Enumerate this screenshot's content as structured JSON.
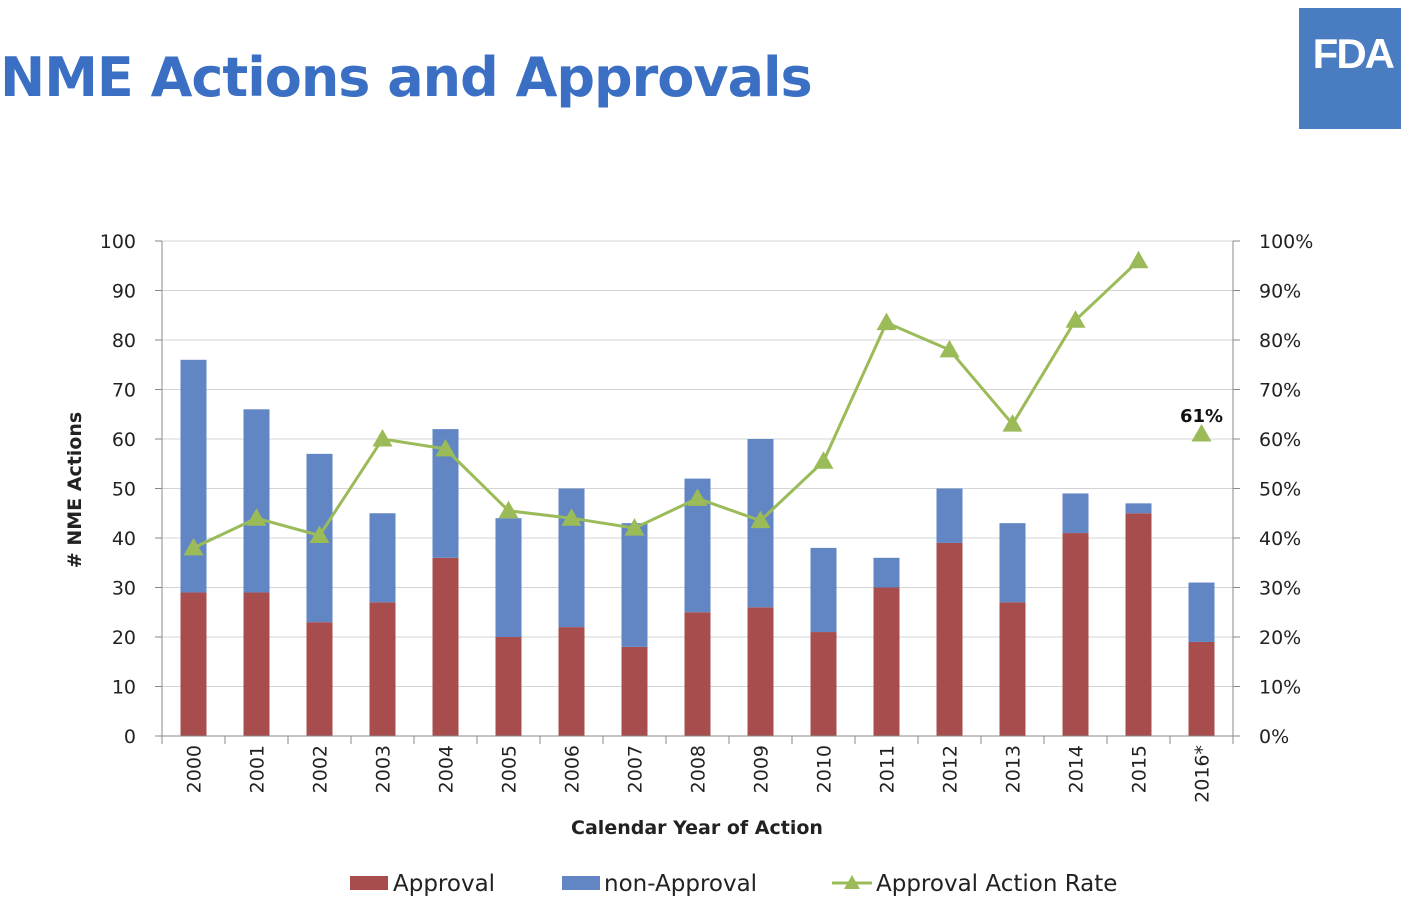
{
  "header": {
    "title": "NME Actions and Approvals",
    "logo_text": "FDA"
  },
  "colors": {
    "title": "#3a6fc4",
    "logo_bg": "#4a7cc2",
    "approval": "#a84d4d",
    "non_approval": "#6286c4",
    "rate_line": "#9bbb59",
    "grid": "#d4d4d4"
  },
  "chart_data": {
    "type": "bar",
    "stacked": true,
    "categories": [
      "2000",
      "2001",
      "2002",
      "2003",
      "2004",
      "2005",
      "2006",
      "2007",
      "2008",
      "2009",
      "2010",
      "2011",
      "2012",
      "2013",
      "2014",
      "2015",
      "2016*"
    ],
    "series": [
      {
        "name": "Approval",
        "type": "bar",
        "axis": "left",
        "values": [
          29,
          29,
          23,
          27,
          36,
          20,
          22,
          18,
          25,
          26,
          21,
          30,
          39,
          27,
          41,
          45,
          19
        ]
      },
      {
        "name": "non-Approval",
        "type": "bar",
        "axis": "left",
        "values": [
          47,
          37,
          34,
          18,
          26,
          24,
          28,
          25,
          27,
          34,
          17,
          6,
          11,
          16,
          8,
          2,
          12
        ]
      },
      {
        "name": "Approval Action Rate",
        "type": "line",
        "axis": "right",
        "marker": "triangle",
        "values": [
          38,
          44,
          40.5,
          60,
          58,
          45.5,
          44,
          42,
          48,
          43.5,
          55.5,
          83.5,
          78,
          63,
          84,
          96,
          61
        ]
      }
    ],
    "xlabel": "Calendar Year of Action",
    "ylabel": "# NME Actions",
    "ylim": [
      0,
      100
    ],
    "yticks": [
      "0",
      "10",
      "20",
      "30",
      "40",
      "50",
      "60",
      "70",
      "80",
      "90",
      "100"
    ],
    "y2lim": [
      0,
      100
    ],
    "y2ticks": [
      "0%",
      "10%",
      "20%",
      "30%",
      "40%",
      "50%",
      "60%",
      "70%",
      "80%",
      "90%",
      "100%"
    ],
    "annotations": [
      {
        "category": "2016*",
        "text": "61%"
      }
    ],
    "grid": true,
    "legend": "bottom"
  }
}
